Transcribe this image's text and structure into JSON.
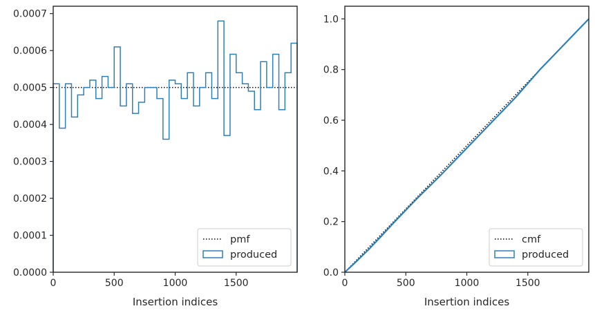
{
  "colors": {
    "produced": "#2d7fb8",
    "reference": "#000000",
    "frame": "#262626",
    "legend_border": "#cccccc"
  },
  "chart_data": [
    {
      "type": "step",
      "xlabel": "Insertion indices",
      "ylabel": "",
      "xlim": [
        0,
        2000
      ],
      "ylim": [
        0,
        0.00072
      ],
      "xticks": [
        0,
        500,
        1000,
        1500
      ],
      "xtick_labels": [
        "0",
        "500",
        "1000",
        "1500"
      ],
      "yticks": [
        0,
        0.0001,
        0.0002,
        0.0003,
        0.0004,
        0.0005,
        0.0006,
        0.0007
      ],
      "ytick_labels": [
        "0.0000",
        "0.0001",
        "0.0002",
        "0.0003",
        "0.0004",
        "0.0005",
        "0.0006",
        "0.0007"
      ],
      "legend_position": "lower-right",
      "series": [
        {
          "name": "pmf",
          "style": "dotted",
          "x": [
            0,
            2000
          ],
          "y": [
            0.0005,
            0.0005
          ]
        },
        {
          "name": "produced",
          "style": "step-histogram",
          "bin_edges": [
            0,
            50,
            100,
            150,
            200,
            250,
            300,
            350,
            400,
            450,
            500,
            550,
            600,
            650,
            700,
            750,
            800,
            850,
            900,
            950,
            1000,
            1050,
            1100,
            1150,
            1200,
            1250,
            1300,
            1350,
            1400,
            1450,
            1500,
            1550,
            1600,
            1650,
            1700,
            1750,
            1800,
            1850,
            1900,
            1950,
            2000
          ],
          "values": [
            0.00051,
            0.00039,
            0.00051,
            0.00042,
            0.00048,
            0.0005,
            0.00052,
            0.00047,
            0.00053,
            0.0005,
            0.00061,
            0.00045,
            0.00051,
            0.00043,
            0.00046,
            0.0005,
            0.0005,
            0.00047,
            0.00036,
            0.00052,
            0.00051,
            0.00047,
            0.00054,
            0.00045,
            0.0005,
            0.00054,
            0.00047,
            0.00068,
            0.00037,
            0.00059,
            0.00054,
            0.00051,
            0.00049,
            0.00044,
            0.00057,
            0.0005,
            0.00059,
            0.00044,
            0.00054,
            0.00062
          ]
        }
      ]
    },
    {
      "type": "line",
      "xlabel": "Insertion indices",
      "ylabel": "",
      "xlim": [
        0,
        2000
      ],
      "ylim": [
        0,
        1.05
      ],
      "xticks": [
        0,
        500,
        1000,
        1500
      ],
      "xtick_labels": [
        "0",
        "500",
        "1000",
        "1500"
      ],
      "yticks": [
        0,
        0.2,
        0.4,
        0.6,
        0.8,
        1.0
      ],
      "ytick_labels": [
        "0.0",
        "0.2",
        "0.4",
        "0.6",
        "0.8",
        "1.0"
      ],
      "legend_position": "lower-right",
      "series": [
        {
          "name": "cmf",
          "style": "dotted",
          "x": [
            0,
            2000
          ],
          "y": [
            0,
            1
          ]
        },
        {
          "name": "produced",
          "style": "solid",
          "x": [
            0,
            100,
            200,
            300,
            400,
            500,
            600,
            700,
            800,
            900,
            1000,
            1100,
            1200,
            1300,
            1400,
            1500,
            1600,
            1700,
            1800,
            1900,
            2000
          ],
          "y": [
            0,
            0.045,
            0.092,
            0.143,
            0.195,
            0.245,
            0.295,
            0.342,
            0.39,
            0.44,
            0.49,
            0.54,
            0.59,
            0.64,
            0.69,
            0.745,
            0.8,
            0.85,
            0.9,
            0.95,
            1.0
          ]
        }
      ]
    }
  ]
}
